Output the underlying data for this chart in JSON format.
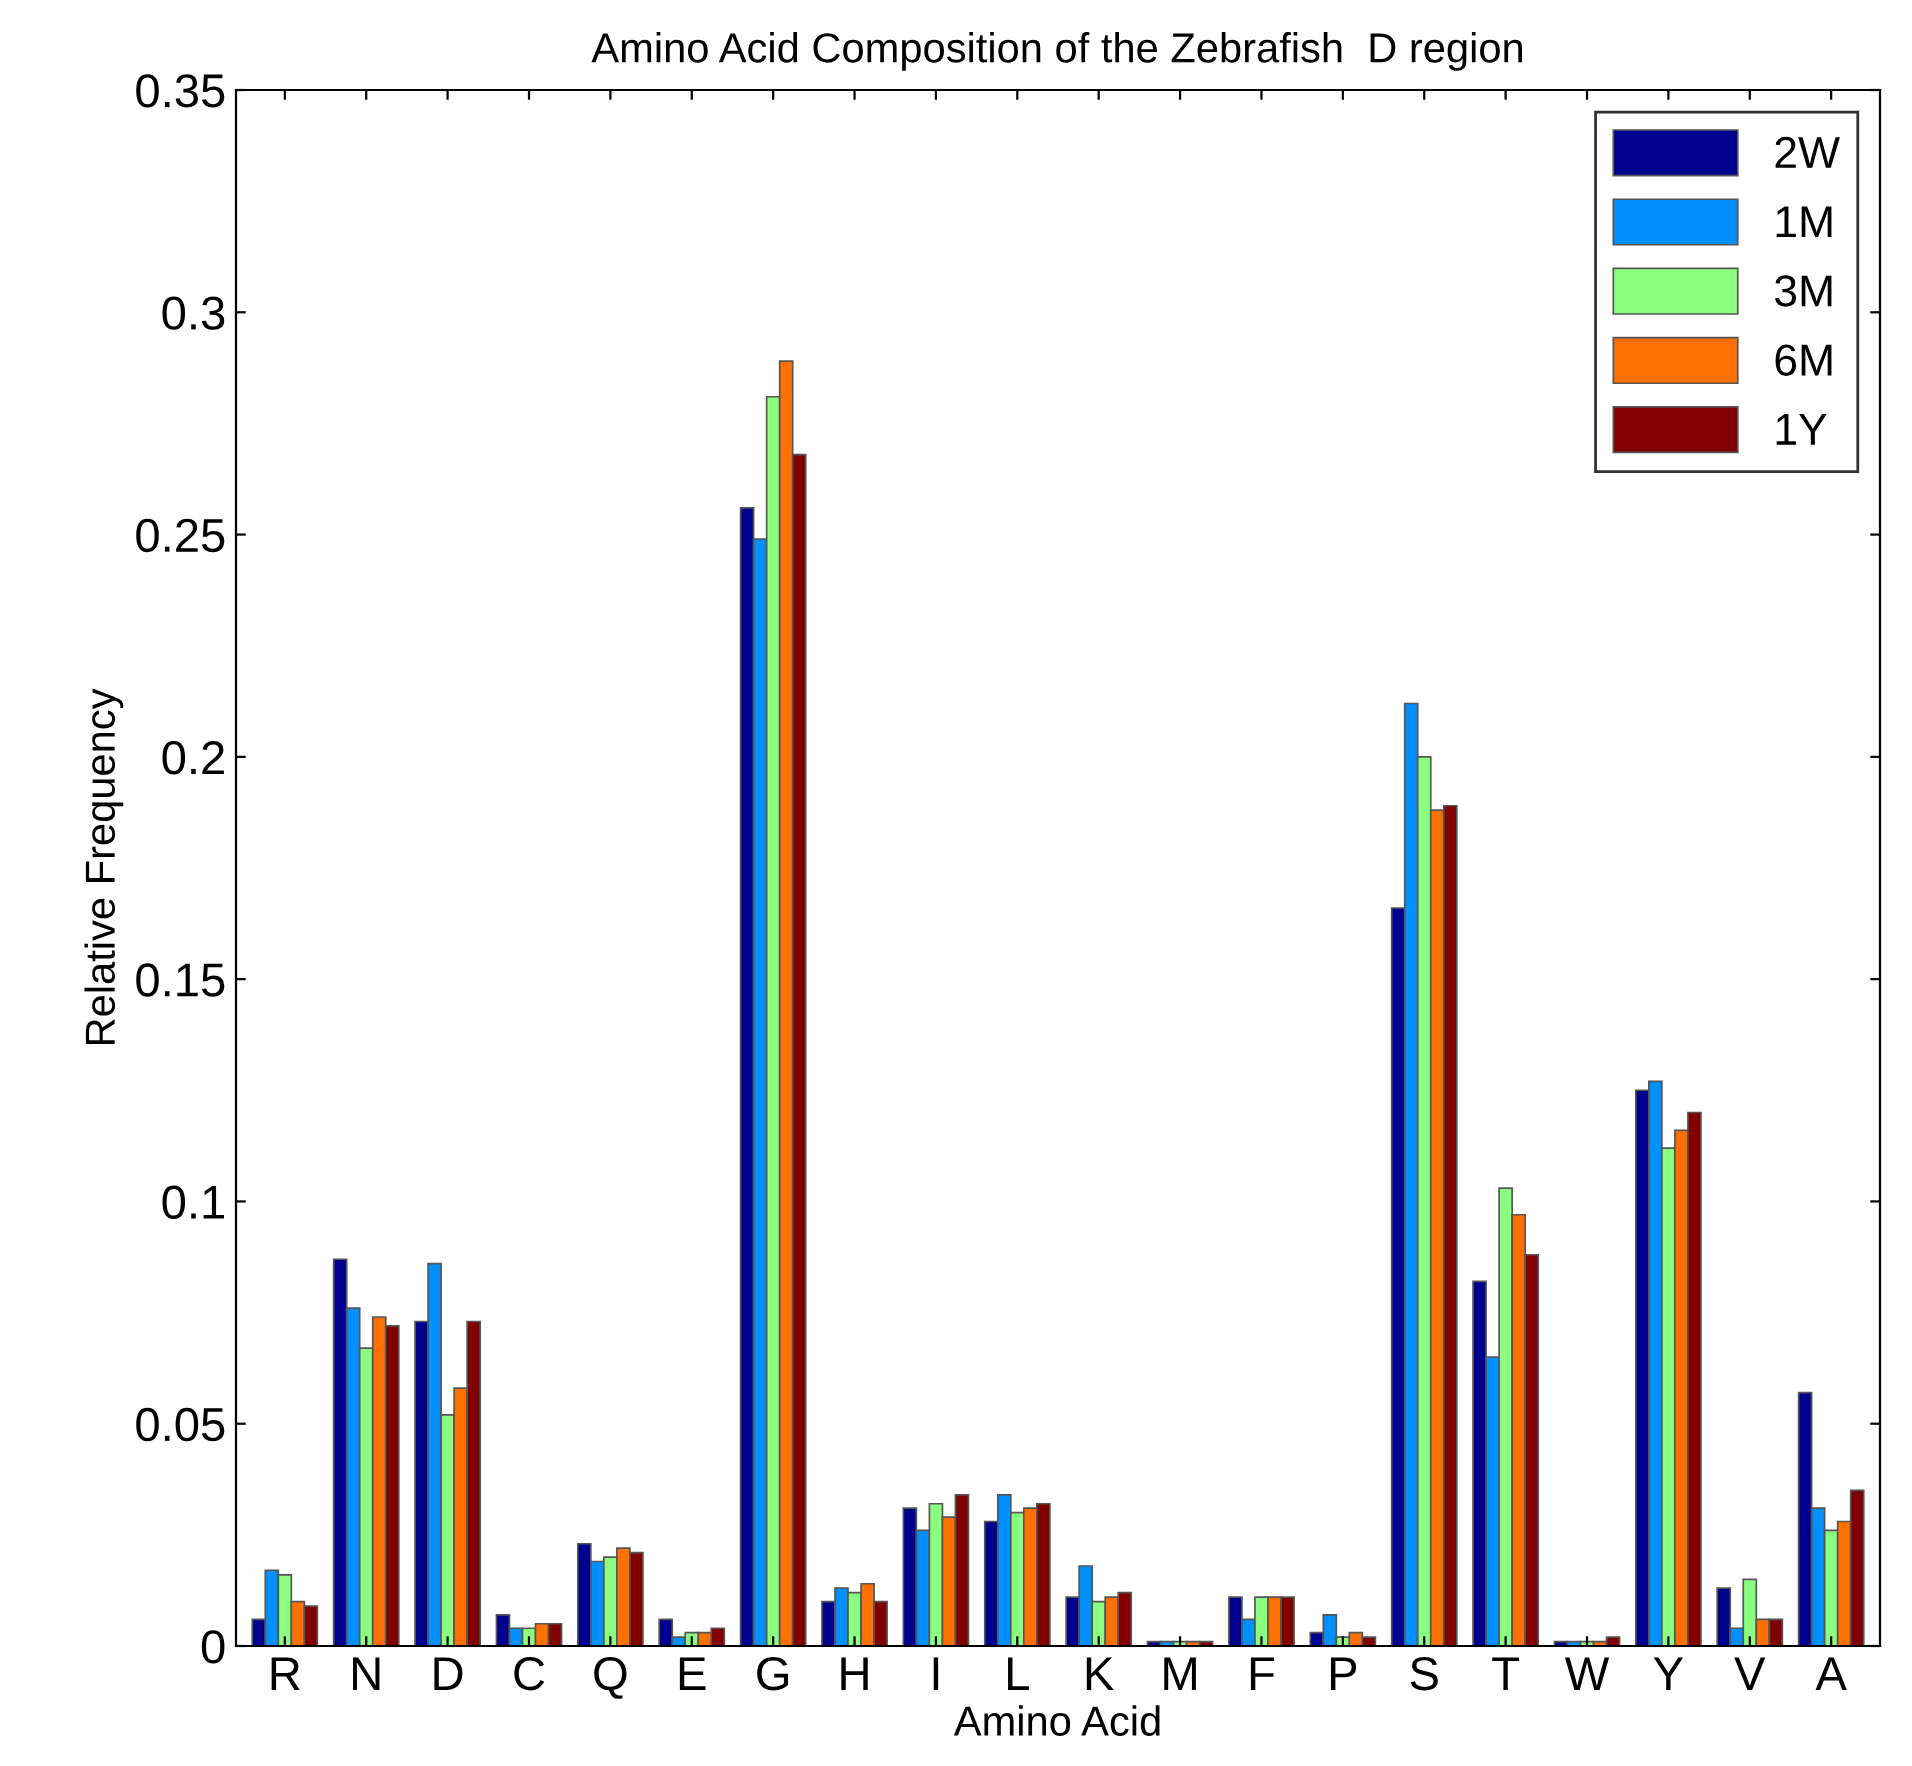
{
  "chart_data": {
    "type": "bar",
    "title": "Amino Acid Composition of the Zebrafish  D region",
    "xlabel": "Amino Acid",
    "ylabel": "Relative Frequency",
    "categories": [
      "R",
      "N",
      "D",
      "C",
      "Q",
      "E",
      "G",
      "H",
      "I",
      "L",
      "K",
      "M",
      "F",
      "P",
      "S",
      "T",
      "W",
      "Y",
      "V",
      "A"
    ],
    "series": [
      {
        "name": "2W",
        "color": "#00008f",
        "values": [
          0.006,
          0.087,
          0.073,
          0.007,
          0.023,
          0.006,
          0.256,
          0.01,
          0.031,
          0.028,
          0.011,
          0.001,
          0.011,
          0.003,
          0.166,
          0.082,
          0.001,
          0.125,
          0.013,
          0.057
        ]
      },
      {
        "name": "1M",
        "color": "#0090ff",
        "values": [
          0.017,
          0.076,
          0.086,
          0.004,
          0.019,
          0.002,
          0.249,
          0.013,
          0.026,
          0.034,
          0.018,
          0.001,
          0.006,
          0.007,
          0.212,
          0.065,
          0.001,
          0.127,
          0.004,
          0.031
        ]
      },
      {
        "name": "3M",
        "color": "#8aff80",
        "values": [
          0.016,
          0.067,
          0.052,
          0.004,
          0.02,
          0.003,
          0.281,
          0.012,
          0.032,
          0.03,
          0.01,
          0.001,
          0.011,
          0.002,
          0.2,
          0.103,
          0.001,
          0.112,
          0.015,
          0.026
        ]
      },
      {
        "name": "6M",
        "color": "#ff7000",
        "values": [
          0.01,
          0.074,
          0.058,
          0.005,
          0.022,
          0.003,
          0.289,
          0.014,
          0.029,
          0.031,
          0.011,
          0.001,
          0.011,
          0.003,
          0.188,
          0.097,
          0.001,
          0.116,
          0.006,
          0.028
        ]
      },
      {
        "name": "1Y",
        "color": "#800000",
        "values": [
          0.009,
          0.072,
          0.073,
          0.005,
          0.021,
          0.004,
          0.268,
          0.01,
          0.034,
          0.032,
          0.012,
          0.001,
          0.011,
          0.002,
          0.189,
          0.088,
          0.002,
          0.12,
          0.006,
          0.035
        ]
      }
    ],
    "ylim": [
      0,
      0.35
    ],
    "yticks": [
      {
        "value": 0,
        "label": "0"
      },
      {
        "value": 0.05,
        "label": "0.05"
      },
      {
        "value": 0.1,
        "label": "0.1"
      },
      {
        "value": 0.15,
        "label": "0.15"
      },
      {
        "value": 0.2,
        "label": "0.2"
      },
      {
        "value": 0.25,
        "label": "0.25"
      },
      {
        "value": 0.3,
        "label": "0.3"
      },
      {
        "value": 0.35,
        "label": "0.35"
      }
    ],
    "grid": false,
    "legend": "top right"
  }
}
